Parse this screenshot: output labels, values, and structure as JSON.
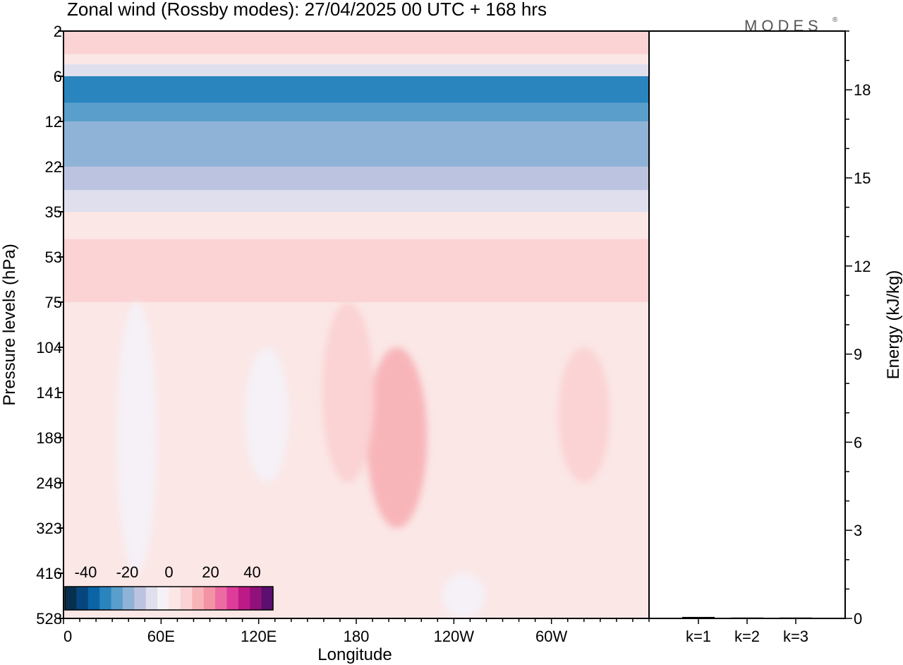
{
  "title": "Zonal wind (Rossby modes):  27/04/2025  00 UTC  + 168 hrs",
  "brand": "MODES",
  "brand_mark": "®",
  "chart_data": [
    {
      "type": "heatmap",
      "quantity": "Zonal wind",
      "xlabel": "Longitude",
      "ylabel": "Pressure levels (hPa)",
      "x_ticks": [
        "0",
        "60E",
        "120E",
        "180",
        "120W",
        "60W"
      ],
      "y_ticks": [
        "2",
        "6",
        "12",
        "22",
        "35",
        "53",
        "75",
        "104",
        "141",
        "188",
        "248",
        "323",
        "416",
        "528"
      ],
      "xlim": [
        0,
        360
      ],
      "colorbar": {
        "ticks": [
          "-40",
          "-20",
          "0",
          "20",
          "40"
        ],
        "range": [
          -50,
          50
        ],
        "colors": [
          "#07304f",
          "#07467d",
          "#0a64a6",
          "#2a84be",
          "#5a9fcc",
          "#8fb3d7",
          "#bcc3e0",
          "#dfdfee",
          "#f5f1f7",
          "#fbe7e6",
          "#fbd3d4",
          "#f8b5b9",
          "#f393a6",
          "#ec6ba3",
          "#dd3d99",
          "#be1a87",
          "#901179",
          "#5b0f6e"
        ]
      },
      "bands": [
        {
          "level_from": "2",
          "level_to": "3.5",
          "value": 8
        },
        {
          "level_from": "3.5",
          "level_to": "4.5",
          "value": 2
        },
        {
          "level_from": "4.5",
          "level_to": "6",
          "value": -10
        },
        {
          "level_from": "6",
          "level_to": "9",
          "value": -32
        },
        {
          "level_from": "9",
          "level_to": "12",
          "value": -26
        },
        {
          "level_from": "12",
          "level_to": "17",
          "value": -22
        },
        {
          "level_from": "17",
          "level_to": "22",
          "value": -18
        },
        {
          "level_from": "22",
          "level_to": "28",
          "value": -12
        },
        {
          "level_from": "28",
          "level_to": "35",
          "value": -6
        },
        {
          "level_from": "35",
          "level_to": "45",
          "value": 2
        },
        {
          "level_from": "45",
          "level_to": "75",
          "value": 9
        },
        {
          "level_from": "75",
          "level_to": "528",
          "value": 3
        }
      ],
      "features": [
        {
          "name": "positive core near 150W",
          "lon": 205,
          "level_top": "104",
          "level_bottom": "323",
          "value": 14
        },
        {
          "name": "positive lobe near 30W",
          "lon": 320,
          "level_top": "104",
          "level_bottom": "248",
          "value": 9
        },
        {
          "name": "positive tongue near 180",
          "lon": 175,
          "level_top": "75",
          "level_bottom": "248",
          "value": 9
        },
        {
          "name": "negative lobe near 120E",
          "lon": 125,
          "level_top": "104",
          "level_bottom": "248",
          "value": -4
        },
        {
          "name": "weak negative near 45E",
          "lon": 45,
          "level_top": "75",
          "level_bottom": "416",
          "value": -2
        },
        {
          "name": "weak negative near 120W",
          "lon": 246,
          "level_top": "416",
          "level_bottom": "528",
          "value": -4
        }
      ]
    },
    {
      "type": "bar",
      "categories": [
        "k=1",
        "k=2",
        "k=3"
      ],
      "values": [
        0.05,
        0.03,
        0.03
      ],
      "ylabel": "Energy (kJ/kg)",
      "y_ticks": [
        "0",
        "3",
        "6",
        "9",
        "12",
        "15",
        "18"
      ],
      "ylim": [
        0,
        20
      ]
    }
  ]
}
